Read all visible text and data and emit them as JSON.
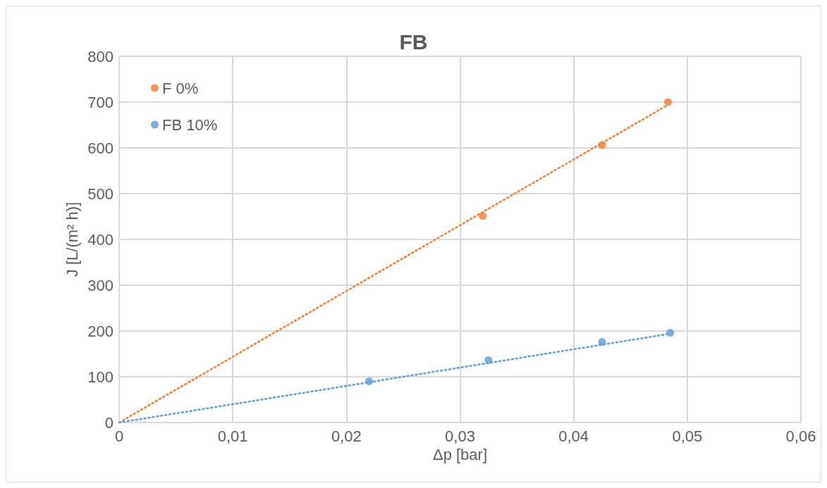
{
  "chart_data": {
    "type": "scatter",
    "title": "FB",
    "xlabel": "Δp [bar]",
    "ylabel": "J [L/(m² h)]",
    "series": [
      {
        "name": "F 0%",
        "color": "#ed7d31",
        "x": [
          0.032,
          0.0425,
          0.0483
        ],
        "values": [
          451,
          606,
          700
        ],
        "marker": "circle"
      },
      {
        "name": "FB 10%",
        "color": "#5b9bd5",
        "x": [
          0.022,
          0.0325,
          0.0425,
          0.0485
        ],
        "values": [
          90,
          136,
          176,
          196
        ],
        "marker": "circle"
      },
      {
        "type": "line",
        "color": "#ed7d31",
        "x": [
          0,
          0.0483
        ],
        "values": [
          0,
          694
        ],
        "line_style": "dotted",
        "marker": "none"
      },
      {
        "type": "line",
        "color": "#5b9bd5",
        "x": [
          0,
          0.0485
        ],
        "values": [
          0,
          194
        ],
        "line_style": "dotted",
        "marker": "none"
      }
    ],
    "xlim": [
      0,
      0.06
    ],
    "xticks": [
      0,
      {
        "value": 0.01,
        "label": "0,01"
      },
      {
        "value": 0.02,
        "label": "0,02"
      },
      {
        "value": 0.03,
        "label": "0,03"
      },
      {
        "value": 0.04,
        "label": "0,04"
      },
      {
        "value": 0.05,
        "label": "0,05"
      },
      {
        "value": 0.06,
        "label": "0,06"
      }
    ],
    "ylim": [
      0,
      800
    ],
    "yticks": [
      0,
      100,
      200,
      300,
      400,
      500,
      600,
      700,
      800
    ],
    "grid": true,
    "legend": "top left"
  }
}
